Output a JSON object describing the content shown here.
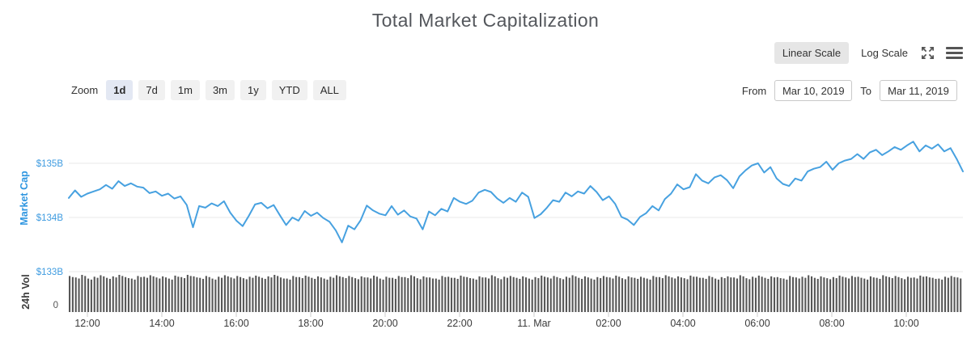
{
  "header": {
    "title": "Total Market Capitalization",
    "scale_toggle": {
      "linear_label": "Linear Scale",
      "log_label": "Log Scale",
      "active": "linear"
    },
    "icons": {
      "expand": "expand-arrows-icon",
      "menu": "hamburger-menu-icon"
    }
  },
  "toolbar": {
    "zoom_label": "Zoom",
    "ranges": [
      {
        "label": "1d",
        "active": true
      },
      {
        "label": "7d",
        "active": false
      },
      {
        "label": "1m",
        "active": false
      },
      {
        "label": "3m",
        "active": false
      },
      {
        "label": "1y",
        "active": false
      },
      {
        "label": "YTD",
        "active": false
      },
      {
        "label": "ALL",
        "active": false
      }
    ],
    "from_label": "From",
    "from_value": "Mar 10, 2019",
    "to_label": "To",
    "to_value": "Mar 11, 2019"
  },
  "chart_data": {
    "type": "line",
    "title": "Total Market Capitalization",
    "grid_color": "#e8e8e8",
    "tick_color": "#cccccc",
    "x_ticklabel_color": "#3b3b3b",
    "x_ticklabels": [
      "12:00",
      "14:00",
      "16:00",
      "18:00",
      "20:00",
      "22:00",
      "11. Mar",
      "02:00",
      "04:00",
      "06:00",
      "08:00",
      "10:00"
    ],
    "interval_minutes": 10,
    "panes": [
      {
        "name": "Market Cap",
        "type": "line",
        "color": "#47a1e0",
        "axis_title": "Market Cap",
        "axis_title_color": "#2f96e0",
        "ytick_label_color": "#3e9be0",
        "ytick_labels": [
          "$135B",
          "$134B",
          "$133B"
        ],
        "ytick_values": [
          135,
          134,
          133
        ],
        "ylim": [
          133.0,
          135.55
        ],
        "unit": "USD billions",
        "values": [
          134.36,
          134.5,
          134.38,
          134.44,
          134.48,
          134.52,
          134.6,
          134.53,
          134.67,
          134.58,
          134.63,
          134.57,
          134.55,
          134.45,
          134.48,
          134.4,
          134.44,
          134.35,
          134.39,
          134.23,
          133.82,
          134.21,
          134.18,
          134.26,
          134.21,
          134.3,
          134.09,
          133.94,
          133.84,
          134.03,
          134.24,
          134.27,
          134.17,
          134.23,
          134.04,
          133.86,
          134.0,
          133.94,
          134.12,
          134.03,
          134.09,
          133.99,
          133.92,
          133.76,
          133.54,
          133.85,
          133.78,
          133.95,
          134.22,
          134.13,
          134.07,
          134.04,
          134.21,
          134.05,
          134.13,
          134.02,
          133.98,
          133.78,
          134.11,
          134.04,
          134.16,
          134.11,
          134.36,
          134.29,
          134.25,
          134.31,
          134.46,
          134.51,
          134.47,
          134.35,
          134.27,
          134.36,
          134.29,
          134.46,
          134.38,
          133.99,
          134.06,
          134.18,
          134.32,
          134.29,
          134.46,
          134.39,
          134.48,
          134.44,
          134.58,
          134.47,
          134.32,
          134.39,
          134.25,
          134.01,
          133.96,
          133.86,
          134.01,
          134.08,
          134.21,
          134.13,
          134.34,
          134.44,
          134.61,
          134.52,
          134.56,
          134.8,
          134.68,
          134.63,
          134.74,
          134.78,
          134.69,
          134.54,
          134.76,
          134.87,
          134.96,
          135.0,
          134.83,
          134.93,
          134.72,
          134.62,
          134.58,
          134.72,
          134.68,
          134.85,
          134.9,
          134.93,
          135.03,
          134.88,
          135.0,
          135.05,
          135.08,
          135.17,
          135.08,
          135.2,
          135.25,
          135.15,
          135.22,
          135.3,
          135.25,
          135.33,
          135.4,
          135.22,
          135.33,
          135.27,
          135.35,
          135.22,
          135.28,
          135.08,
          134.85
        ]
      },
      {
        "name": "24h Vol",
        "type": "bar",
        "color": "#575757",
        "axis_title": "24h Vol",
        "axis_title_color": "#3c3c3c",
        "ytick_label_color": "#555555",
        "ytick_labels": [
          "0"
        ],
        "values_relative": [
          0.97,
          0.93,
          1.0,
          0.9,
          0.95,
          0.99,
          0.92,
          0.96,
          1.0,
          0.94,
          0.9,
          0.97,
          0.95,
          0.99,
          0.93,
          0.96,
          0.9,
          0.98,
          0.94,
          1.0,
          0.96,
          0.92,
          0.97,
          0.9,
          0.95,
          0.99,
          0.93,
          0.97,
          0.91,
          0.95,
          0.98,
          0.92,
          0.96,
          1.0,
          0.93,
          0.9,
          0.97,
          0.94,
          0.98,
          0.92,
          0.96,
          0.9,
          0.95,
          0.99,
          0.94,
          0.97,
          0.91,
          0.96,
          0.93,
          0.98,
          0.9,
          0.95,
          0.92,
          0.97,
          0.94,
          0.99,
          0.91,
          0.96,
          0.93,
          0.9,
          0.97,
          0.95,
          0.92,
          0.98,
          0.94,
          0.9,
          0.96,
          0.93,
          0.99,
          0.91,
          0.95,
          0.97,
          0.92,
          0.96,
          0.9,
          0.94,
          0.98,
          0.93,
          0.97,
          0.91,
          0.95,
          0.99,
          0.92,
          0.96,
          0.9,
          0.94,
          0.97,
          0.93,
          0.98,
          0.91,
          0.96,
          0.92,
          0.95,
          0.9,
          0.97,
          0.94,
          0.99,
          0.93,
          0.96,
          0.91,
          0.98,
          0.95,
          0.92,
          0.97,
          0.9,
          0.94,
          0.96,
          0.93,
          0.99,
          0.91,
          0.95,
          0.98,
          0.92,
          0.96,
          0.94,
          0.9,
          0.97,
          0.93,
          0.95,
          0.99,
          0.92,
          0.96,
          0.91,
          0.94,
          0.98,
          0.93,
          0.97,
          0.95,
          0.9,
          0.96,
          0.92,
          0.99,
          0.94,
          0.97,
          0.91,
          0.95,
          0.93,
          0.98,
          0.96,
          0.92,
          0.9,
          0.95,
          0.97,
          0.93,
          0.96
        ]
      }
    ]
  }
}
